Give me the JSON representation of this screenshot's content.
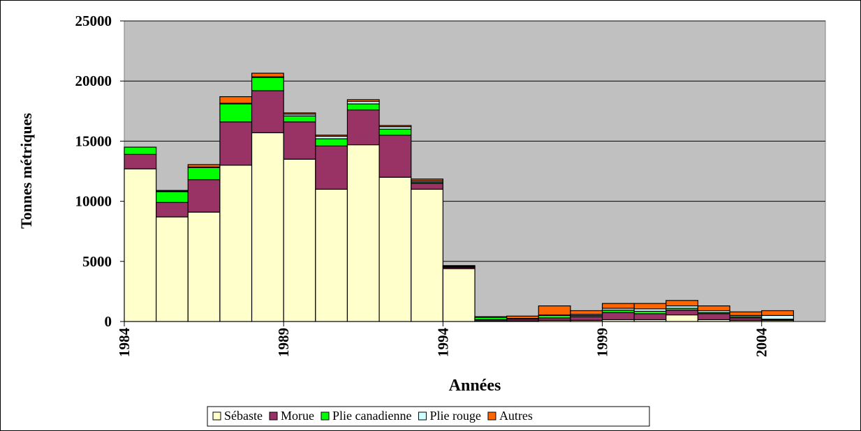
{
  "chart_data": {
    "type": "bar",
    "stacked": true,
    "y_label": "Tonnes métriques",
    "x_label": "Années",
    "categories": [
      "1984",
      null,
      null,
      null,
      null,
      "1989",
      null,
      null,
      null,
      null,
      "1994",
      null,
      null,
      null,
      null,
      "1999",
      null,
      null,
      null,
      null,
      "2004"
    ],
    "series": [
      {
        "name": "Sébaste",
        "color": "#ffffcc",
        "values": [
          12700,
          8700,
          9100,
          13000,
          15700,
          13500,
          11000,
          14700,
          12000,
          11000,
          4400,
          50,
          50,
          100,
          100,
          150,
          150,
          550,
          150,
          100,
          100
        ]
      },
      {
        "name": "Morue",
        "color": "#993366",
        "values": [
          1200,
          1200,
          2700,
          3600,
          3500,
          3100,
          3600,
          2900,
          3500,
          500,
          100,
          100,
          150,
          200,
          300,
          600,
          500,
          400,
          500,
          200,
          50
        ]
      },
      {
        "name": "Plie canadienne",
        "color": "#00ff00",
        "values": [
          600,
          900,
          1000,
          1500,
          1100,
          500,
          600,
          500,
          500,
          100,
          50,
          200,
          50,
          200,
          100,
          200,
          200,
          150,
          100,
          100,
          50
        ]
      },
      {
        "name": "Plie rouge",
        "color": "#ccffff",
        "values": [
          0,
          50,
          50,
          50,
          50,
          150,
          200,
          200,
          200,
          100,
          50,
          50,
          0,
          50,
          100,
          150,
          200,
          200,
          150,
          100,
          300
        ]
      },
      {
        "name": "Autres",
        "color": "#ff6600",
        "values": [
          0,
          50,
          200,
          550,
          300,
          100,
          100,
          150,
          100,
          150,
          50,
          0,
          200,
          750,
          300,
          400,
          450,
          450,
          400,
          300,
          400
        ]
      }
    ],
    "ylim": [
      0,
      25000
    ],
    "yticks": [
      0,
      5000,
      10000,
      15000,
      20000,
      25000
    ],
    "grid": true,
    "legend": "bottom"
  }
}
